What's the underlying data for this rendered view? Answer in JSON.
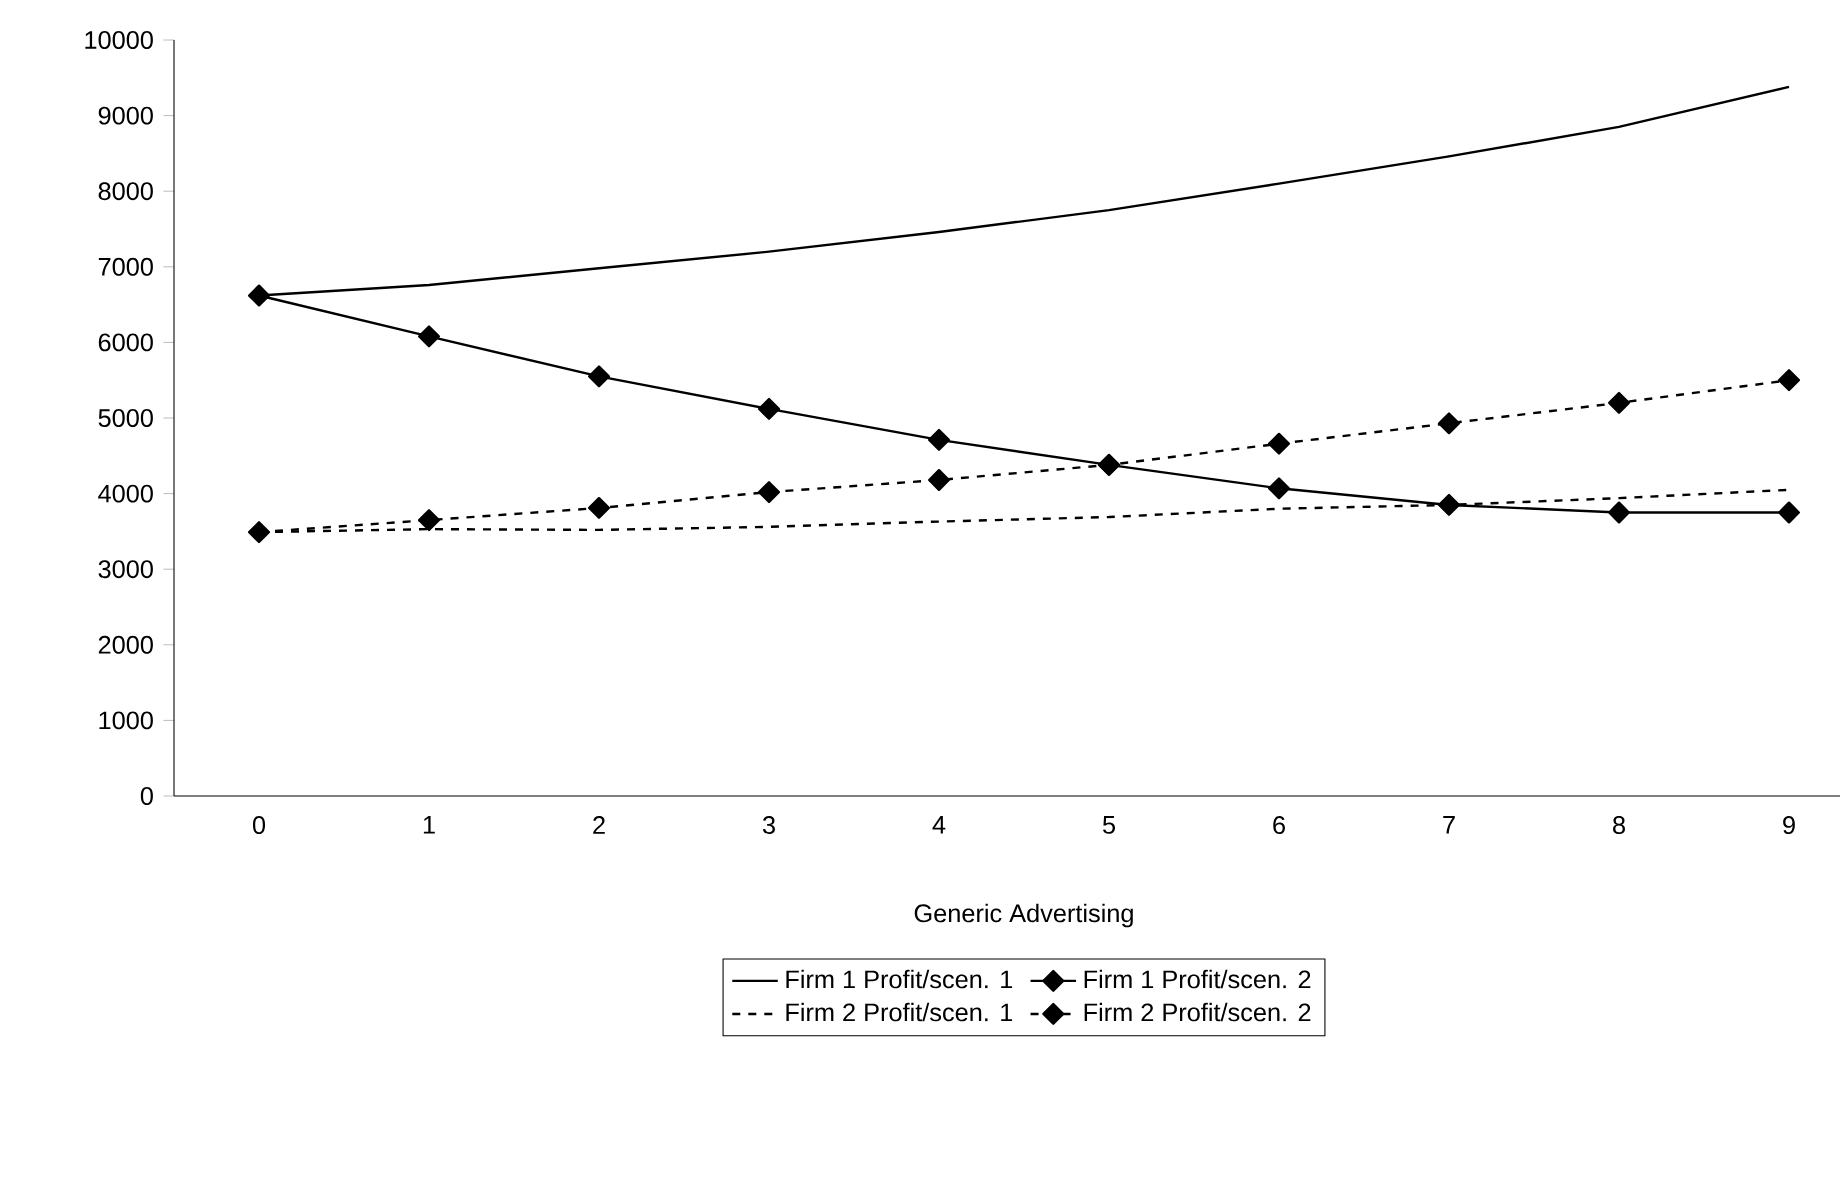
{
  "chart_data": {
    "type": "line",
    "xlabel": "Generic Advertising",
    "categories": [
      "0",
      "1",
      "2",
      "3",
      "4",
      "5",
      "6",
      "7",
      "8",
      "9"
    ],
    "ylim": [
      0,
      10000
    ],
    "yticks": [
      0,
      1000,
      2000,
      3000,
      4000,
      5000,
      6000,
      7000,
      8000,
      9000,
      10000
    ],
    "grid": false,
    "legend": "bottom",
    "series": [
      {
        "name": "Firm 1 Profit/scen. 1",
        "color": "#000000",
        "marker": "none",
        "line_style": "solid",
        "values": [
          6620,
          6760,
          6980,
          7200,
          7460,
          7750,
          8100,
          8460,
          8850,
          9380
        ]
      },
      {
        "name": "Firm 1 Profit/scen. 2",
        "color": "#000000",
        "marker": "diamond",
        "line_style": "solid",
        "values": [
          6620,
          6080,
          5550,
          5120,
          4710,
          4380,
          4070,
          3850,
          3750,
          3750
        ]
      },
      {
        "name": "Firm 2 Profit/scen. 1",
        "color": "#000000",
        "marker": "none",
        "line_style": "dashed",
        "values": [
          3490,
          3530,
          3520,
          3560,
          3630,
          3690,
          3800,
          3850,
          3940,
          4050
        ]
      },
      {
        "name": "Firm 2 Profit/scen. 2",
        "color": "#000000",
        "marker": "diamond",
        "line_style": "dashed",
        "values": [
          3490,
          3650,
          3810,
          4020,
          4180,
          4380,
          4660,
          4930,
          5200,
          5500
        ]
      }
    ]
  }
}
